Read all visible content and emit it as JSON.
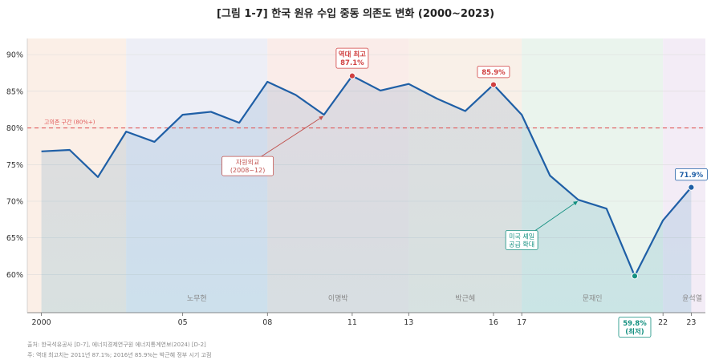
{
  "chart_data": {
    "type": "line",
    "title": "[그림 1-7]  한국 원유 수입 중동 의존도 변화 (2000~2023)",
    "x": [
      2000,
      2001,
      2002,
      2003,
      2004,
      2005,
      2006,
      2007,
      2008,
      2009,
      2010,
      2011,
      2012,
      2013,
      2014,
      2015,
      2016,
      2017,
      2018,
      2019,
      2020,
      2021,
      2022,
      2023
    ],
    "series": [
      {
        "name": "중동 의존도 (%)",
        "color": "#1f5fa6",
        "values": [
          76.8,
          77.0,
          73.3,
          79.5,
          78.1,
          81.8,
          82.2,
          80.7,
          86.3,
          84.5,
          81.8,
          87.1,
          85.1,
          86.0,
          84.0,
          82.3,
          85.9,
          81.8,
          73.5,
          70.2,
          69.0,
          59.8,
          67.4,
          71.9
        ]
      }
    ],
    "ylim": [
      54.8,
      92.2
    ],
    "xlim": [
      1999.5,
      2023.5
    ],
    "yticks": [
      60,
      65,
      70,
      75,
      80,
      85,
      90
    ],
    "ytick_labels": [
      "60%",
      "65%",
      "70%",
      "75%",
      "80%",
      "85%",
      "90%"
    ],
    "xticks": [
      2000,
      2005,
      2008,
      2011,
      2013,
      2016,
      2017,
      2022,
      2023
    ],
    "xtick_labels": [
      "2000",
      "05",
      "08",
      "11",
      "13",
      "16",
      "17",
      "22",
      "23"
    ],
    "threshold": {
      "value": 80,
      "label": "고의존 구간 (80%+)",
      "color": "#e05a5a"
    },
    "eras": [
      {
        "name": "",
        "start": 1999.5,
        "end": 2003,
        "color": "#f9e9df"
      },
      {
        "name": "노무현",
        "start": 2003,
        "end": 2008,
        "color": "#e7e8f3"
      },
      {
        "name": "이명박",
        "start": 2008,
        "end": 2013,
        "color": "#f8e6e1"
      },
      {
        "name": "박근혜",
        "start": 2013,
        "end": 2017,
        "color": "#f7ebe0"
      },
      {
        "name": "문재인",
        "start": 2017,
        "end": 2022,
        "color": "#e3f0e7"
      },
      {
        "name": "윤석열",
        "start": 2022,
        "end": 2023.5,
        "color": "#efe6f3"
      }
    ],
    "highlights": [
      {
        "x": 2011,
        "label_lines": [
          "역대 최고",
          "87.1%"
        ],
        "color": "#d04040",
        "position": "above"
      },
      {
        "x": 2016,
        "label_lines": [
          "85.9%"
        ],
        "color": "#d04040",
        "position": "above"
      },
      {
        "x": 2021,
        "label_lines": [
          "59.8%",
          "(최저)"
        ],
        "color": "#149080",
        "position": "below-axis"
      },
      {
        "x": 2023,
        "label_lines": [
          "71.9%"
        ],
        "color": "#1f5fa6",
        "position": "above"
      }
    ],
    "annotations": [
      {
        "text_lines": [
          "자원외교",
          "(2008~12)"
        ],
        "arrow_to_x": 2010,
        "text_x": 2007.3,
        "text_y": 74.8,
        "color": "#c0504d"
      },
      {
        "text_lines": [
          "미국 셰일",
          "공급 확대"
        ],
        "arrow_to_x": 2019,
        "text_x": 2017,
        "text_y": 64.7,
        "color": "#149080"
      }
    ]
  },
  "notes": {
    "source": "출처: 한국석유공사 [D-7], 에너지경제연구원 에너지통계연보(2024) [D-2]",
    "remark": "주: 역대 최고치는 2011년 87.1%; 2016년 85.9%는 박근혜 정부 시기 고점"
  }
}
